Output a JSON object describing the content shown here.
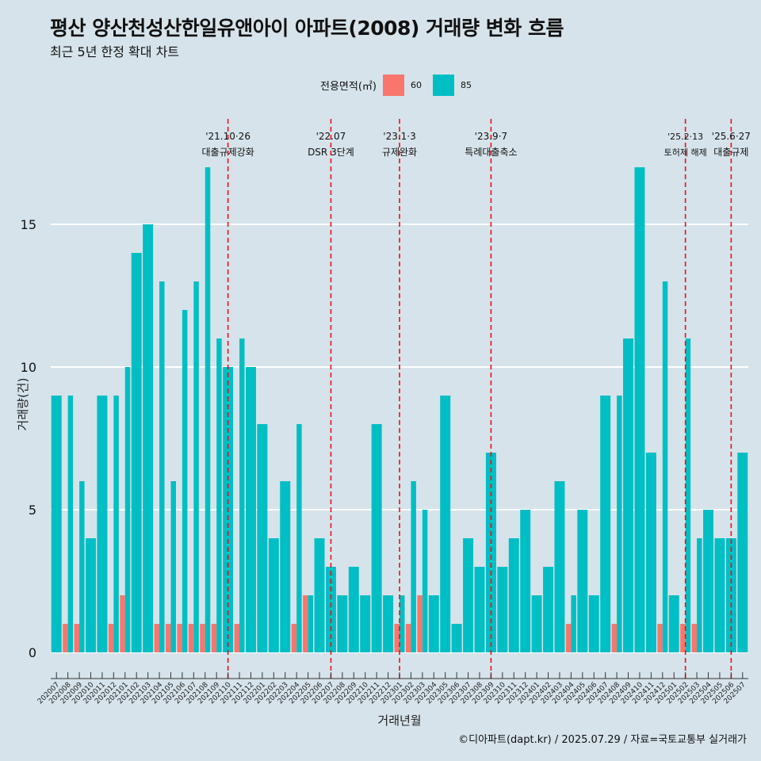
{
  "title": "평산 양산천성산한일유앤아이 아파트(2008) 거래량 변화 흐름",
  "subtitle": "최근 5년 한정 확대 차트",
  "caption": "©디아파트(dapt.kr) / 2025.07.29 / 자료=국토교통부 실거래가",
  "legend": {
    "title": "전용면적(㎡)",
    "items": [
      {
        "label": "60",
        "color": "#f8766d"
      },
      {
        "label": "85",
        "color": "#00bfc4"
      }
    ]
  },
  "chart_data": {
    "type": "bar",
    "xlabel": "거래년월",
    "ylabel": "거래량(건)",
    "ylim": [
      0,
      18
    ],
    "yticks": [
      0,
      5,
      10,
      15
    ],
    "categories": [
      "202007",
      "202008",
      "202009",
      "202010",
      "202011",
      "202012",
      "202101",
      "202102",
      "202103",
      "202104",
      "202105",
      "202106",
      "202107",
      "202108",
      "202109",
      "202110",
      "202111",
      "202112",
      "202201",
      "202202",
      "202203",
      "202204",
      "202205",
      "202206",
      "202207",
      "202208",
      "202209",
      "202210",
      "202211",
      "202212",
      "202301",
      "202302",
      "202303",
      "202304",
      "202305",
      "202306",
      "202307",
      "202308",
      "202309",
      "202310",
      "202311",
      "202312",
      "202401",
      "202402",
      "202403",
      "202404",
      "202405",
      "202406",
      "202407",
      "202408",
      "202409",
      "202410",
      "202411",
      "202412",
      "202501",
      "202502",
      "202503",
      "202504",
      "202505",
      "202506",
      "202507"
    ],
    "series": [
      {
        "name": "60",
        "color": "#f8766d",
        "values": [
          0,
          1,
          1,
          0,
          0,
          1,
          2,
          0,
          0,
          1,
          1,
          1,
          1,
          1,
          1,
          0,
          1,
          0,
          0,
          0,
          0,
          1,
          2,
          0,
          0,
          0,
          0,
          0,
          0,
          0,
          1,
          1,
          2,
          0,
          0,
          0,
          0,
          0,
          0,
          0,
          0,
          0,
          0,
          0,
          0,
          1,
          0,
          0,
          0,
          1,
          0,
          0,
          0,
          1,
          0,
          1,
          1,
          0,
          0,
          0,
          0
        ]
      },
      {
        "name": "85",
        "color": "#00bfc4",
        "values": [
          9,
          9,
          6,
          4,
          9,
          9,
          10,
          14,
          15,
          13,
          6,
          12,
          13,
          17,
          11,
          10,
          11,
          10,
          8,
          4,
          6,
          8,
          2,
          4,
          3,
          2,
          3,
          2,
          8,
          2,
          2,
          6,
          5,
          2,
          9,
          1,
          4,
          3,
          7,
          3,
          4,
          5,
          2,
          3,
          6,
          2,
          5,
          2,
          9,
          9,
          11,
          17,
          7,
          13,
          2,
          11,
          4,
          5,
          4,
          4,
          7
        ]
      }
    ],
    "annotations": [
      {
        "at": "202110",
        "date": "'21.10·26",
        "text": "대출규제강화"
      },
      {
        "at": "202207",
        "date": "'22.07",
        "text": "DSR 3단계"
      },
      {
        "at": "202301",
        "date": "'23.1·3",
        "text": "규제완화"
      },
      {
        "at": "202309",
        "date": "'23.9·7",
        "text": "특례대출축소"
      },
      {
        "at": "202502",
        "date": "'25.2·13",
        "text": "토허제 해제"
      },
      {
        "at": "202506",
        "date": "'25.6·27",
        "text": "대출규제"
      }
    ],
    "legend_position": "top"
  }
}
